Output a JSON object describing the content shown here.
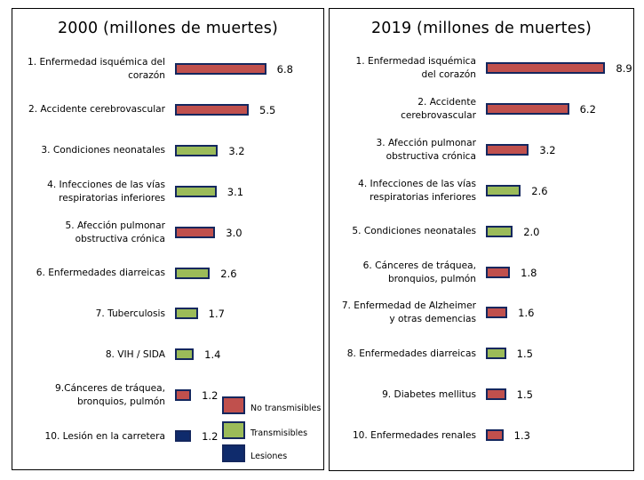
{
  "colors": {
    "no_transmisibles": "#c0504d",
    "transmisibles": "#9bbb59",
    "lesiones": "#0f2b6c",
    "bar_border": "#14275e"
  },
  "legend": [
    {
      "key": "no_transmisibles",
      "label": "No transmisibles"
    },
    {
      "key": "transmisibles",
      "label": "Transmisibles"
    },
    {
      "key": "lesiones",
      "label": "Lesiones"
    }
  ],
  "chart_data": [
    {
      "type": "bar",
      "orientation": "horizontal",
      "title": "2000 (millones de muertes)",
      "categories": [
        "1. Enfermedad isquémica del\ncorazón",
        "2. Accidente cerebrovascular",
        "3. Condiciones neonatales",
        "4. Infecciones de las vías\nrespiratorias inferiores",
        "5. Afección pulmonar\nobstructiva crónica",
        "6. Enfermedades diarreicas",
        "7. Tuberculosis",
        "8. VIH / SIDA",
        "9.Cánceres de tráquea,\nbronquios, pulmón",
        "10. Lesión en la carretera"
      ],
      "values": [
        6.8,
        5.5,
        3.2,
        3.1,
        3.0,
        2.6,
        1.7,
        1.4,
        1.2,
        1.2
      ],
      "value_labels": [
        "6.8",
        "5.5",
        "3.2",
        "3.1",
        "3.0",
        "2.6",
        "1.7",
        "1.4",
        "1.2",
        "1.2"
      ],
      "groups": [
        "no_transmisibles",
        "no_transmisibles",
        "transmisibles",
        "transmisibles",
        "no_transmisibles",
        "transmisibles",
        "transmisibles",
        "transmisibles",
        "no_transmisibles",
        "lesiones"
      ]
    },
    {
      "type": "bar",
      "orientation": "horizontal",
      "title": "2019 (millones de muertes)",
      "categories": [
        "1. Enfermedad isquémica\ndel corazón",
        "2. Accidente\ncerebrovascular",
        "3. Afección pulmonar\nobstructiva crónica",
        "4. Infecciones de las vías\nrespiratorias inferiores",
        "5. Condiciones neonatales",
        "6. Cánceres de tráquea,\nbronquios, pulmón",
        "7. Enfermedad de Alzheimer\ny otras demencias",
        "8. Enfermedades diarreicas",
        "9. Diabetes mellitus",
        "10. Enfermedades renales"
      ],
      "values": [
        8.9,
        6.2,
        3.2,
        2.6,
        2.0,
        1.8,
        1.6,
        1.5,
        1.5,
        1.3
      ],
      "value_labels": [
        "8.9",
        "6.2",
        "3.2",
        "2.6",
        "2.0",
        "1.8",
        "1.6",
        "1.5",
        "1.5",
        "1.3"
      ],
      "groups": [
        "no_transmisibles",
        "no_transmisibles",
        "no_transmisibles",
        "transmisibles",
        "transmisibles",
        "no_transmisibles",
        "no_transmisibles",
        "transmisibles",
        "no_transmisibles",
        "no_transmisibles"
      ]
    }
  ]
}
